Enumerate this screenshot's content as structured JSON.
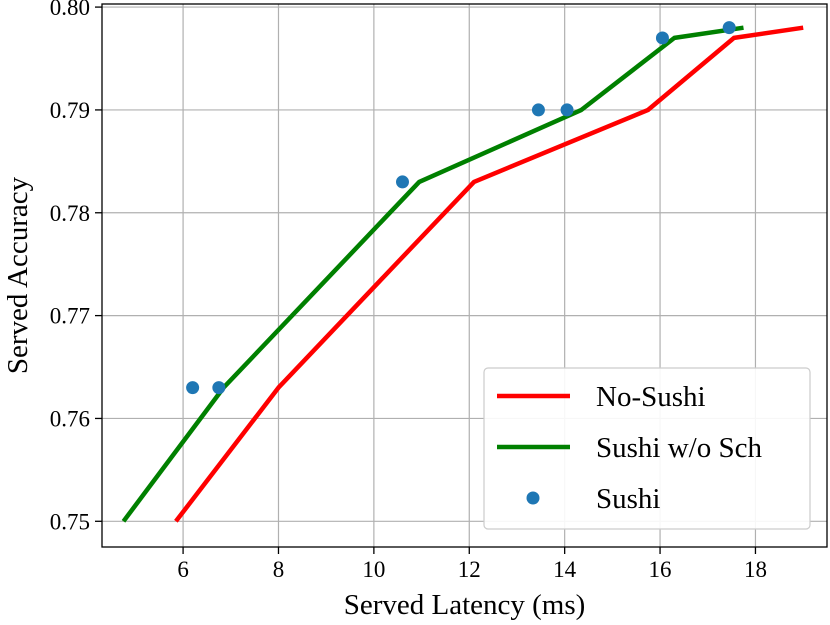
{
  "chart_data": {
    "type": "line",
    "xlabel": "Served Latency (ms)",
    "ylabel": "Served Accuracy",
    "xlim": [
      4.3,
      19.5
    ],
    "ylim": [
      0.7475,
      0.8003
    ],
    "x_ticks": [
      6,
      8,
      10,
      12,
      14,
      16,
      18
    ],
    "y_ticks": [
      0.75,
      0.76,
      0.77,
      0.78,
      0.79,
      0.8
    ],
    "x_tick_labels": [
      "6",
      "8",
      "10",
      "12",
      "14",
      "16",
      "18"
    ],
    "y_tick_labels": [
      "0.75",
      "0.76",
      "0.77",
      "0.78",
      "0.79",
      "0.80"
    ],
    "grid": true,
    "legend_position": "lower-right",
    "series": [
      {
        "name": "No-Sushi",
        "kind": "line",
        "color": "#ff0000",
        "points": [
          [
            5.85,
            0.75
          ],
          [
            8.0,
            0.763
          ],
          [
            12.1,
            0.783
          ],
          [
            15.75,
            0.79
          ],
          [
            17.55,
            0.797
          ],
          [
            19.0,
            0.798
          ]
        ]
      },
      {
        "name": "Sushi w/o Sch",
        "kind": "line",
        "color": "#008000",
        "points": [
          [
            4.75,
            0.75
          ],
          [
            6.85,
            0.763
          ],
          [
            10.95,
            0.783
          ],
          [
            14.35,
            0.79
          ],
          [
            16.3,
            0.797
          ],
          [
            17.75,
            0.798
          ]
        ]
      },
      {
        "name": "Sushi",
        "kind": "scatter",
        "color": "#1f77b4",
        "points": [
          [
            6.2,
            0.763
          ],
          [
            6.75,
            0.763
          ],
          [
            10.6,
            0.783
          ],
          [
            13.45,
            0.79
          ],
          [
            14.05,
            0.79
          ],
          [
            16.05,
            0.797
          ],
          [
            17.45,
            0.798
          ]
        ]
      }
    ]
  }
}
